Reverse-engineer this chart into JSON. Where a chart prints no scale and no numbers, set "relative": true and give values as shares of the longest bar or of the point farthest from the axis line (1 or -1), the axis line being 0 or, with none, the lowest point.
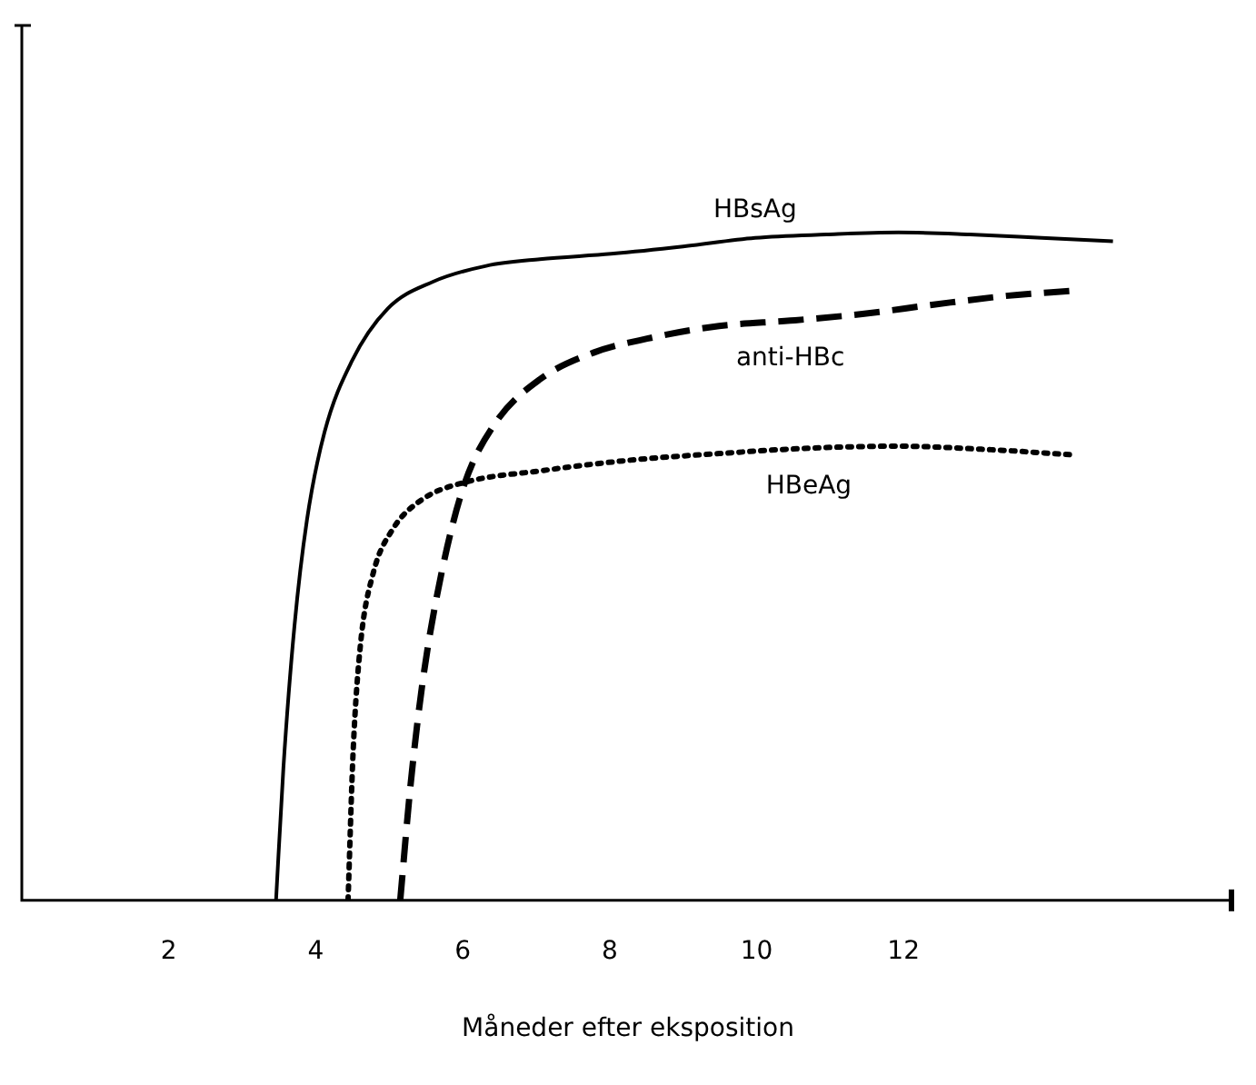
{
  "chart_data": {
    "type": "line",
    "relative": true,
    "xlabel": "Måneder efter eksposition",
    "xlim": [
      0,
      16.5
    ],
    "xticks": [
      2,
      4,
      6,
      8,
      10,
      12
    ],
    "grid": false,
    "legend": false,
    "marker": "none",
    "series": [
      {
        "name": "HBsAg",
        "color": "#000000",
        "line_style": "solid",
        "x": [
          3.46,
          3.56,
          3.71,
          3.88,
          4.12,
          4.49,
          4.98,
          5.59,
          6.32,
          7.05,
          8.02,
          9.0,
          9.98,
          10.95,
          11.93,
          12.9,
          13.88,
          14.85
        ],
        "values": [
          0,
          0.198,
          0.41,
          0.569,
          0.701,
          0.807,
          0.886,
          0.926,
          0.95,
          0.96,
          0.968,
          0.979,
          0.992,
          0.997,
          1.0,
          0.997,
          0.992,
          0.987
        ]
      },
      {
        "name": "anti-HBc",
        "color": "#000000",
        "line_style": "dashed",
        "x": [
          5.15,
          5.29,
          5.46,
          5.71,
          6.02,
          6.44,
          7.05,
          7.78,
          8.51,
          9.49,
          10.46,
          11.44,
          12.41,
          13.39,
          14.32
        ],
        "values": [
          0,
          0.172,
          0.331,
          0.489,
          0.622,
          0.714,
          0.78,
          0.82,
          0.841,
          0.86,
          0.868,
          0.878,
          0.892,
          0.905,
          0.913
        ]
      },
      {
        "name": "HBeAg",
        "color": "#000000",
        "line_style": "dotted",
        "x": [
          4.44,
          4.51,
          4.61,
          4.78,
          5.05,
          5.46,
          6.07,
          7.05,
          8.27,
          9.49,
          10.71,
          11.93,
          13.15,
          14.32
        ],
        "values": [
          0,
          0.225,
          0.384,
          0.489,
          0.556,
          0.601,
          0.627,
          0.643,
          0.659,
          0.669,
          0.677,
          0.68,
          0.675,
          0.667
        ]
      }
    ]
  }
}
